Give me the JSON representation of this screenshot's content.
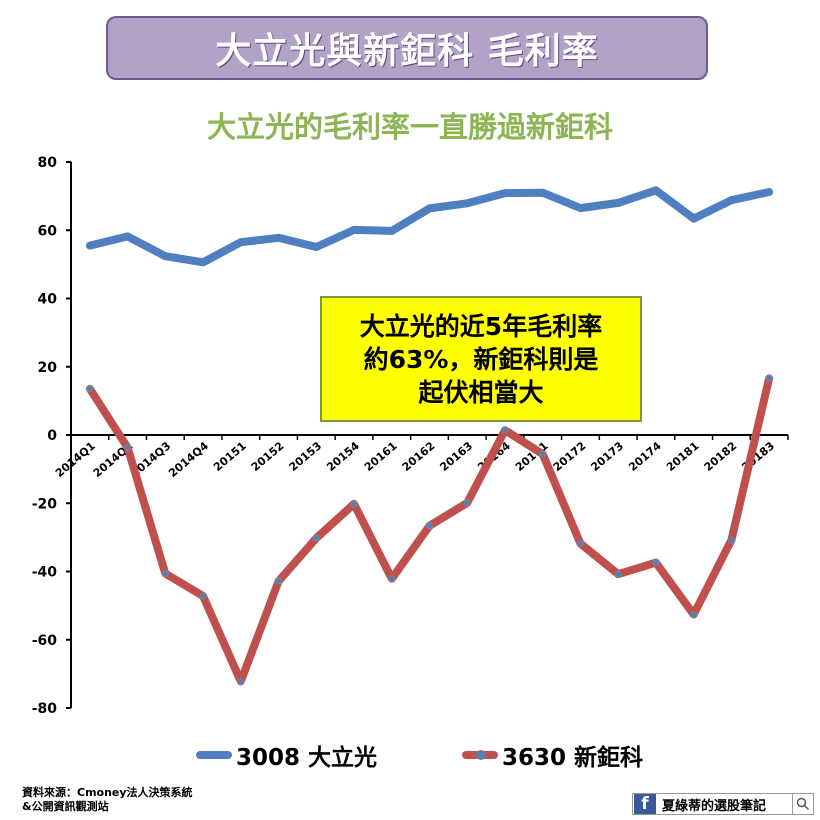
{
  "banner": {
    "title": "大立光與新鉅科 毛利率"
  },
  "subtitle": "大立光的毛利率一直勝過新鉅科",
  "callout": {
    "line1": "大立光的近5年毛利率",
    "line2": "約63%，新鉅科則是",
    "line3": "起伏相當大"
  },
  "source": {
    "line1": "資料來源：Cmoney法人決策系統",
    "line2": "&公開資訊觀測站"
  },
  "badge": {
    "icon": "facebook-icon",
    "name": "夏綠蒂的選股筆記",
    "search_icon": "search-icon"
  },
  "colors": {
    "series1": "#4f7fc0",
    "series2": "#c0504d",
    "banner_bg": "#b3a2c7",
    "subtitle": "#8db555",
    "callout_bg": "#ffff00"
  },
  "chart_data": {
    "type": "line",
    "title": "",
    "xlabel": "",
    "ylabel": "",
    "ylim": [
      -80,
      80
    ],
    "yticks": [
      80,
      60,
      40,
      20,
      0,
      -20,
      -40,
      -60,
      -80
    ],
    "grid": false,
    "legend": "bottom",
    "categories": [
      "2014Q1",
      "2014Q2",
      "2014Q3",
      "2014Q4",
      "20151",
      "20152",
      "20153",
      "20154",
      "20161",
      "20162",
      "20163",
      "20164",
      "20171",
      "20172",
      "20173",
      "20174",
      "20181",
      "20182",
      "20183"
    ],
    "series": [
      {
        "name": "3008 大立光",
        "values": [
          55.5,
          58.2,
          52.4,
          50.6,
          56.5,
          57.8,
          55.1,
          60.1,
          59.8,
          66.4,
          67.9,
          70.9,
          71.0,
          66.5,
          68.0,
          71.7,
          63.4,
          68.8,
          71.2
        ]
      },
      {
        "name": "3630 新鉅科",
        "values": [
          13.5,
          -3.7,
          -40.6,
          -47.2,
          -72.2,
          -42.8,
          -30.2,
          -20.2,
          -42.1,
          -26.6,
          -19.9,
          1.4,
          -5.6,
          -31.8,
          -40.8,
          -37.4,
          -52.6,
          -30.8,
          16.6
        ]
      }
    ]
  }
}
